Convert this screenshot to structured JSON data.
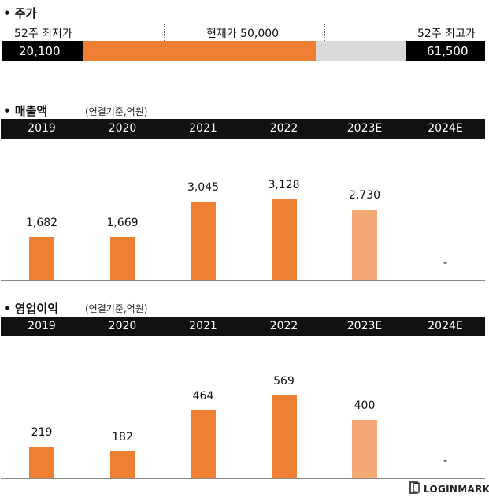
{
  "price": {
    "title": "• 주가",
    "low_label": "52주 최저가",
    "current_label": "현재가 50,000",
    "high_label": "52주 최고가",
    "low_value": "20,100",
    "high_value": "61,500",
    "low": 20100,
    "current": 50000,
    "high": 61500,
    "colors": {
      "fill": "#ef7f32",
      "track": "#d9d9d9",
      "cap": "#000000"
    }
  },
  "revenue": {
    "title": "• 매출액",
    "unit": "(연결기준,억원)"
  },
  "op_income": {
    "title": "• 영업이익",
    "unit": "(연결기준,억원)"
  },
  "chart_data": [
    {
      "type": "bar",
      "categories": [
        "2019",
        "2020",
        "2021",
        "2022",
        "2023E",
        "2024E"
      ],
      "values": [
        1682,
        1669,
        3045,
        3128,
        2730,
        null
      ],
      "labels": [
        "1,682",
        "1,669",
        "3,045",
        "3,128",
        "2,730",
        "-"
      ],
      "title": "• 매출액",
      "xlabel": "",
      "ylabel": "",
      "ylim": [
        0,
        3200
      ],
      "grid": false,
      "colors": {
        "actual": "#ef7f32",
        "estimate": "#f4a876"
      }
    },
    {
      "type": "bar",
      "categories": [
        "2019",
        "2020",
        "2021",
        "2022",
        "2023E",
        "2024E"
      ],
      "values": [
        219,
        182,
        464,
        569,
        400,
        null
      ],
      "labels": [
        "219",
        "182",
        "464",
        "569",
        "400",
        "-"
      ],
      "title": "• 영업이익",
      "xlabel": "",
      "ylabel": "",
      "ylim": [
        0,
        569
      ],
      "grid": false,
      "colors": {
        "actual": "#ef7f32",
        "estimate": "#f4a876"
      }
    }
  ],
  "footer": {
    "logo_text": "LOGINMARKET",
    "logo_icon": "login-door-icon"
  }
}
